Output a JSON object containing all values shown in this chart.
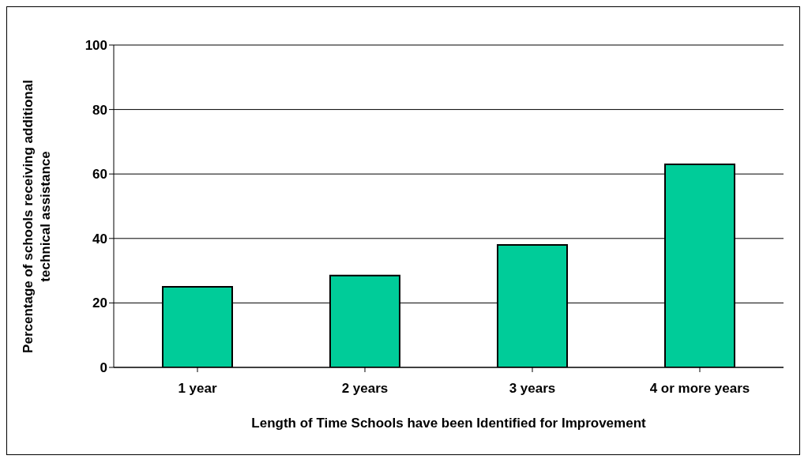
{
  "chart_data": {
    "type": "bar",
    "xlabel": "Length of Time Schools have been Identified for Improvement",
    "ylabel": "Percentage of schools receiving additional technical assistance",
    "categories": [
      "1 year",
      "2 years",
      "3 years",
      "4 or more years"
    ],
    "values": [
      25,
      28.5,
      38,
      63
    ],
    "color": "#00cc99",
    "ylim": [
      0,
      100
    ],
    "yticks": [
      0,
      20,
      40,
      60,
      80,
      100
    ],
    "grid": "y"
  }
}
